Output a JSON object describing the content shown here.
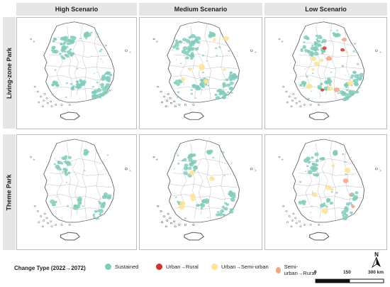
{
  "columns": [
    "High Scenario",
    "Medium Scenario",
    "Low Scenario"
  ],
  "rows": [
    "Living-zone Park",
    "Theme Park"
  ],
  "legend": {
    "title": "Change Type (2022→2072)",
    "items": [
      {
        "label": "Sustained",
        "color": "#7fcdbb"
      },
      {
        "label": "Urban→Rural",
        "color": "#d73027"
      },
      {
        "label": "Urban→Semi-urban",
        "color": "#fee391"
      },
      {
        "label": "Semi-urban→Rural",
        "color": "#f4a582"
      }
    ]
  },
  "north_label": "N",
  "scale": {
    "ticks": [
      "0",
      "150",
      "300 km"
    ]
  },
  "panels": [
    {
      "row": "Living-zone Park",
      "column": "High Scenario",
      "dominant": "Sustained",
      "secondary": []
    },
    {
      "row": "Living-zone Park",
      "column": "Medium Scenario",
      "dominant": "Sustained",
      "secondary": [
        "Urban→Semi-urban"
      ]
    },
    {
      "row": "Living-zone Park",
      "column": "Low Scenario",
      "dominant": "Sustained",
      "secondary": [
        "Urban→Semi-urban",
        "Semi-urban→Rural",
        "Urban→Rural"
      ]
    },
    {
      "row": "Theme Park",
      "column": "High Scenario",
      "dominant": "Sustained",
      "secondary": []
    },
    {
      "row": "Theme Park",
      "column": "Medium Scenario",
      "dominant": "Sustained",
      "secondary": [
        "Urban→Semi-urban"
      ]
    },
    {
      "row": "Theme Park",
      "column": "Low Scenario",
      "dominant": "Sustained",
      "secondary": [
        "Urban→Semi-urban",
        "Semi-urban→Rural"
      ]
    }
  ]
}
